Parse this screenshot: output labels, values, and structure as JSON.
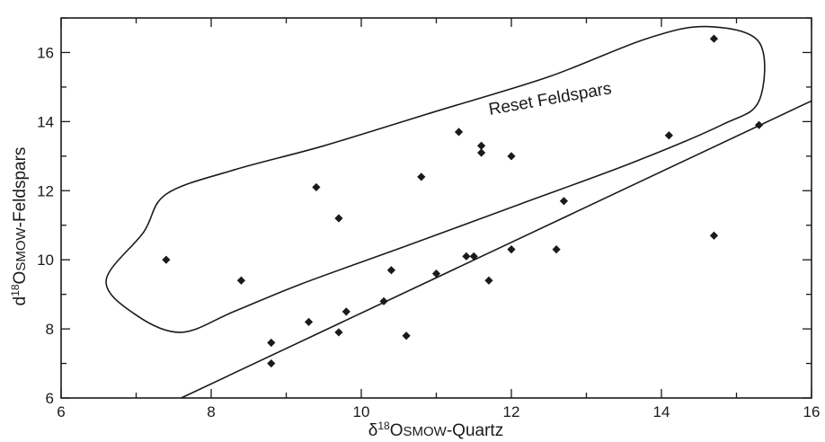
{
  "chart_data": {
    "type": "scatter",
    "xlabel_prefix": "δ",
    "xlabel_sup": "18",
    "xlabel_main": "O",
    "xlabel_small": "SMOW",
    "xlabel_suffix": "-Quartz",
    "ylabel_prefix": "d",
    "ylabel_sup": "18",
    "ylabel_main": "O",
    "ylabel_small": "SMOW",
    "ylabel_suffix": "-Feldspars",
    "xlim": [
      6,
      16
    ],
    "ylim": [
      6,
      17
    ],
    "xticks": [
      6,
      8,
      10,
      12,
      14,
      16
    ],
    "yticks": [
      6,
      8,
      10,
      12,
      14,
      16
    ],
    "grid": false,
    "annotation": "Reset Feldspars",
    "points": [
      {
        "x": 7.4,
        "y": 10.0
      },
      {
        "x": 8.4,
        "y": 9.4
      },
      {
        "x": 8.8,
        "y": 7.0
      },
      {
        "x": 8.8,
        "y": 7.6
      },
      {
        "x": 9.3,
        "y": 8.2
      },
      {
        "x": 9.4,
        "y": 12.1
      },
      {
        "x": 9.7,
        "y": 11.2
      },
      {
        "x": 9.7,
        "y": 7.9
      },
      {
        "x": 9.8,
        "y": 8.5
      },
      {
        "x": 10.3,
        "y": 8.8
      },
      {
        "x": 10.4,
        "y": 9.7
      },
      {
        "x": 10.6,
        "y": 7.8
      },
      {
        "x": 10.8,
        "y": 12.4
      },
      {
        "x": 11.0,
        "y": 9.6
      },
      {
        "x": 11.3,
        "y": 13.7
      },
      {
        "x": 11.4,
        "y": 10.1
      },
      {
        "x": 11.5,
        "y": 10.1
      },
      {
        "x": 11.6,
        "y": 13.1
      },
      {
        "x": 11.6,
        "y": 13.3
      },
      {
        "x": 11.7,
        "y": 9.4
      },
      {
        "x": 12.0,
        "y": 13.0
      },
      {
        "x": 12.0,
        "y": 10.3
      },
      {
        "x": 12.6,
        "y": 10.3
      },
      {
        "x": 12.7,
        "y": 11.7
      },
      {
        "x": 14.1,
        "y": 13.6
      },
      {
        "x": 14.7,
        "y": 16.4
      },
      {
        "x": 14.7,
        "y": 10.7
      },
      {
        "x": 15.3,
        "y": 13.9
      }
    ],
    "trend_line": {
      "x": [
        7.6,
        16.0
      ],
      "y": [
        6.0,
        14.6
      ]
    },
    "envelope": [
      [
        7.1,
        10.8
      ],
      [
        7.4,
        11.9
      ],
      [
        8.3,
        12.6
      ],
      [
        9.5,
        13.3
      ],
      [
        11.0,
        14.3
      ],
      [
        12.5,
        15.3
      ],
      [
        13.8,
        16.4
      ],
      [
        14.6,
        16.75
      ],
      [
        15.3,
        16.3
      ],
      [
        15.3,
        14.6
      ],
      [
        14.8,
        13.9
      ],
      [
        13.6,
        12.8
      ],
      [
        12.1,
        11.6
      ],
      [
        10.6,
        10.4
      ],
      [
        9.2,
        9.3
      ],
      [
        8.3,
        8.5
      ],
      [
        7.6,
        7.9
      ],
      [
        7.0,
        8.4
      ],
      [
        6.6,
        9.4
      ]
    ]
  }
}
